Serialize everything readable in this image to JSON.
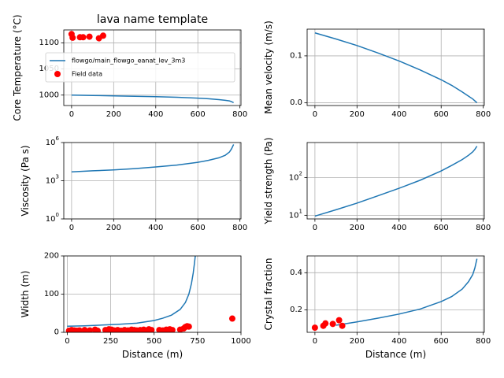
{
  "colors": {
    "model_line": "#1f77b4",
    "field_marker": "#ff0000",
    "grid": "#b0b0b0",
    "axis": "#000000"
  },
  "chart_data": [
    {
      "id": "core_temperature",
      "type": "line",
      "title": "lava name template",
      "xlabel": "",
      "ylabel": "Core Temperature (°C)",
      "xlim": [
        -37,
        805
      ],
      "ylim": [
        980,
        1125
      ],
      "x_ticks": [
        0,
        200,
        400,
        600,
        800
      ],
      "y_ticks": [
        1000,
        1050,
        1100
      ],
      "grid": true,
      "legend": {
        "placement": "center-left",
        "entries": [
          {
            "label": "flowgo/main_flowgo_eanat_lev_3m3",
            "kind": "line"
          },
          {
            "label": "Field data",
            "kind": "marker"
          }
        ]
      },
      "series": [
        {
          "name": "flowgo/main_flowgo_eanat_lev_3m3",
          "kind": "line",
          "x": [
            0,
            100,
            200,
            300,
            400,
            500,
            600,
            650,
            700,
            730,
            750,
            760,
            770
          ],
          "y": [
            1000,
            999.3,
            998.6,
            997.8,
            996.9,
            995.8,
            994.2,
            993,
            991.3,
            990,
            988.8,
            987.5,
            985.5
          ]
        },
        {
          "name": "Field data",
          "kind": "scatter",
          "x": [
            0,
            5,
            40,
            55,
            85,
            130,
            150
          ],
          "y": [
            1117,
            1110,
            1111,
            1111,
            1112,
            1109,
            1114
          ]
        }
      ]
    },
    {
      "id": "mean_velocity",
      "type": "line",
      "title": "",
      "xlabel": "",
      "ylabel": "Mean velocity (m/s)",
      "xlim": [
        -37,
        805
      ],
      "ylim": [
        -0.006,
        0.157
      ],
      "x_ticks": [
        0,
        200,
        400,
        600,
        800
      ],
      "y_ticks": [
        0.0,
        0.1
      ],
      "y_tick_labels": [
        "0.0",
        "0.1"
      ],
      "grid": true,
      "series": [
        {
          "kind": "line",
          "x": [
            0,
            100,
            200,
            300,
            400,
            500,
            600,
            650,
            700,
            730,
            750,
            770
          ],
          "y": [
            0.149,
            0.136,
            0.122,
            0.106,
            0.089,
            0.07,
            0.049,
            0.037,
            0.023,
            0.014,
            0.008,
            0.0
          ]
        }
      ]
    },
    {
      "id": "viscosity",
      "type": "line",
      "title": "",
      "xlabel": "",
      "ylabel": "Viscosity (Pa s)",
      "xscale": "linear",
      "yscale": "log",
      "xlim": [
        -37,
        805
      ],
      "ylim": [
        1,
        1000000
      ],
      "x_ticks": [
        0,
        200,
        400,
        600,
        800
      ],
      "y_ticks": [
        1,
        1000,
        1000000
      ],
      "y_tick_labels": [
        "10^0",
        "10^3",
        "10^6"
      ],
      "grid": true,
      "series": [
        {
          "kind": "line",
          "x": [
            0,
            100,
            200,
            300,
            400,
            500,
            600,
            650,
            700,
            730,
            750,
            760,
            770
          ],
          "y": [
            5000,
            6000,
            7100,
            9000,
            12000,
            17000,
            28000,
            40000,
            63000,
            100000,
            178000,
            316000,
            708000
          ]
        }
      ]
    },
    {
      "id": "yield_strength",
      "type": "line",
      "title": "",
      "xlabel": "",
      "ylabel": "Yield strength (Pa)",
      "yscale": "log",
      "xlim": [
        -37,
        805
      ],
      "ylim": [
        8,
        850
      ],
      "x_ticks": [
        0,
        200,
        400,
        600,
        800
      ],
      "y_ticks": [
        10,
        100
      ],
      "y_tick_labels": [
        "10^1",
        "10^2"
      ],
      "grid": true,
      "series": [
        {
          "kind": "line",
          "x": [
            0,
            100,
            200,
            300,
            400,
            500,
            600,
            650,
            700,
            730,
            750,
            760,
            770
          ],
          "y": [
            9.5,
            14,
            21,
            33,
            52,
            85,
            150,
            210,
            300,
            390,
            480,
            560,
            680
          ]
        }
      ]
    },
    {
      "id": "width",
      "type": "line",
      "title": "",
      "xlabel": "Distance (m)",
      "ylabel": "Width (m)",
      "xlim": [
        -20,
        1000
      ],
      "ylim": [
        0,
        200
      ],
      "x_ticks": [
        0,
        250,
        500,
        750,
        1000
      ],
      "y_ticks": [
        0,
        100,
        200
      ],
      "grid": true,
      "series": [
        {
          "kind": "line",
          "x": [
            0,
            100,
            200,
            300,
            400,
            500,
            550,
            600,
            650,
            680,
            700,
            715,
            725,
            732,
            737
          ],
          "y": [
            16,
            17,
            19,
            21,
            24,
            31,
            37,
            45,
            60,
            78,
            100,
            128,
            155,
            180,
            200
          ]
        },
        {
          "name": "Field data",
          "kind": "scatter",
          "x": [
            10,
            25,
            40,
            55,
            70,
            100,
            130,
            160,
            175,
            220,
            240,
            255,
            270,
            290,
            310,
            330,
            350,
            370,
            385,
            400,
            420,
            440,
            455,
            470,
            485,
            530,
            550,
            570,
            590,
            605,
            650,
            670,
            680,
            690,
            700,
            950
          ],
          "y": [
            4,
            6,
            5,
            4,
            5,
            6,
            5,
            7,
            4,
            6,
            8,
            7,
            5,
            6,
            4,
            6,
            5,
            7,
            6,
            5,
            6,
            7,
            5,
            8,
            6,
            6,
            5,
            7,
            8,
            6,
            7,
            10,
            14,
            16,
            15,
            36
          ]
        }
      ]
    },
    {
      "id": "crystal_fraction",
      "type": "line",
      "title": "",
      "xlabel": "Distance (m)",
      "ylabel": "Crystal fraction",
      "xlim": [
        -37,
        805
      ],
      "ylim": [
        0.08,
        0.49
      ],
      "x_ticks": [
        0,
        200,
        400,
        600,
        800
      ],
      "y_ticks": [
        0.2,
        0.4
      ],
      "y_tick_labels": [
        "0.2",
        "0.4"
      ],
      "grid": true,
      "series": [
        {
          "kind": "line",
          "x": [
            100,
            200,
            300,
            400,
            500,
            600,
            650,
            700,
            730,
            750,
            760,
            770
          ],
          "y": [
            0.118,
            0.136,
            0.156,
            0.178,
            0.205,
            0.245,
            0.272,
            0.312,
            0.352,
            0.39,
            0.425,
            0.475
          ]
        },
        {
          "name": "Field data",
          "kind": "scatter",
          "x": [
            0,
            40,
            50,
            85,
            115,
            130
          ],
          "y": [
            0.105,
            0.115,
            0.128,
            0.125,
            0.145,
            0.115
          ]
        }
      ]
    }
  ]
}
